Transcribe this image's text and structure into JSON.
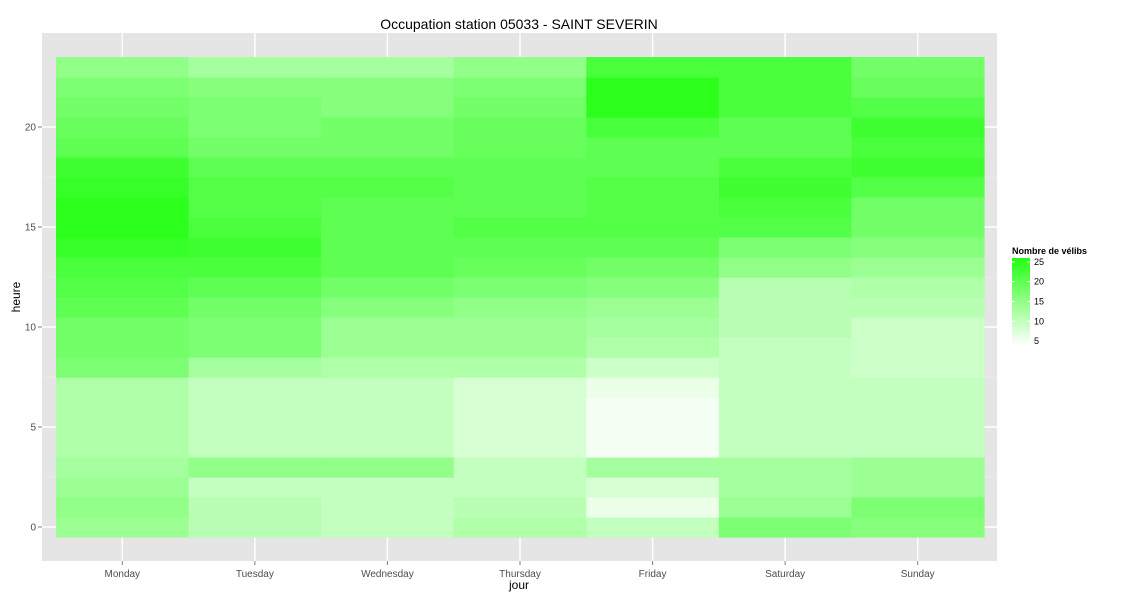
{
  "chart_data": {
    "type": "heatmap",
    "title": "Occupation station 05033 - SAINT SEVERIN",
    "xlabel": "jour",
    "ylabel": "heure",
    "categories": [
      "Monday",
      "Tuesday",
      "Wednesday",
      "Thursday",
      "Friday",
      "Saturday",
      "Sunday"
    ],
    "hours": [
      0,
      1,
      2,
      3,
      4,
      5,
      6,
      7,
      8,
      9,
      10,
      11,
      12,
      13,
      14,
      15,
      16,
      17,
      18,
      19,
      20,
      21,
      22,
      23
    ],
    "values": [
      [
        14,
        11,
        10,
        12,
        10,
        17,
        16
      ],
      [
        15,
        11,
        10,
        11,
        6,
        14,
        17
      ],
      [
        14,
        10,
        10,
        10,
        8,
        13,
        14
      ],
      [
        13,
        15,
        15,
        10,
        13,
        13,
        14
      ],
      [
        12,
        10,
        10,
        8,
        5,
        10,
        10
      ],
      [
        12,
        10,
        10,
        8,
        5,
        10,
        10
      ],
      [
        12,
        10,
        10,
        8,
        5,
        10,
        10
      ],
      [
        12,
        10,
        10,
        8,
        6,
        10,
        10
      ],
      [
        17,
        13,
        12,
        12,
        9,
        10,
        9
      ],
      [
        18,
        17,
        14,
        14,
        12,
        10,
        9
      ],
      [
        18,
        17,
        14,
        14,
        13,
        11,
        9
      ],
      [
        20,
        18,
        16,
        15,
        14,
        11,
        11
      ],
      [
        21,
        20,
        18,
        17,
        16,
        11,
        12
      ],
      [
        22,
        22,
        20,
        19,
        18,
        15,
        14
      ],
      [
        24,
        23,
        20,
        20,
        20,
        17,
        16
      ],
      [
        25,
        22,
        20,
        21,
        21,
        21,
        18
      ],
      [
        25,
        21,
        20,
        20,
        21,
        22,
        18
      ],
      [
        24,
        21,
        21,
        20,
        21,
        23,
        21
      ],
      [
        23,
        20,
        20,
        20,
        20,
        22,
        23
      ],
      [
        20,
        18,
        18,
        19,
        20,
        20,
        22
      ],
      [
        19,
        17,
        18,
        19,
        22,
        20,
        23
      ],
      [
        18,
        17,
        16,
        18,
        25,
        22,
        21
      ],
      [
        17,
        16,
        16,
        17,
        25,
        22,
        19
      ],
      [
        15,
        13,
        13,
        15,
        22,
        22,
        18
      ]
    ],
    "yticks": [
      0,
      5,
      10,
      15,
      20
    ],
    "ylim": [
      -0.5,
      23.5
    ],
    "legend": {
      "title": "Nombre de vélibs",
      "breaks": [
        25,
        20,
        15,
        10,
        5
      ],
      "range": [
        4,
        26
      ],
      "placement": "right"
    },
    "colors": {
      "low": "#ffffff",
      "high": "#22ff11",
      "panel_background": "#e5e5e5",
      "grid": "#ffffff"
    },
    "grid": true
  }
}
